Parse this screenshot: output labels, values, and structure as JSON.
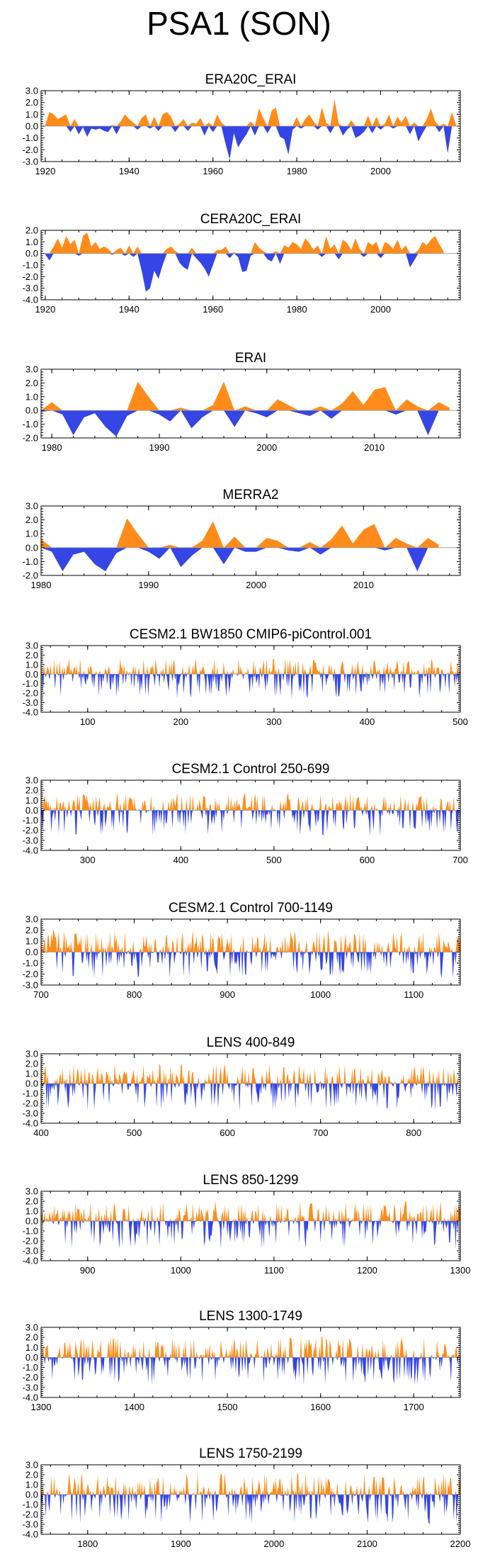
{
  "figure": {
    "title": "PSA1 (SON)"
  },
  "colors": {
    "positive": "#ff8c1a",
    "negative": "#3545e6",
    "frame": "#000000",
    "zero_line": "#9a9a9a"
  },
  "chart_data": [
    {
      "type": "area",
      "title": "ERA20C_ERAI",
      "xlim": [
        1919,
        2019
      ],
      "xticks": [
        1920,
        1940,
        1960,
        1980,
        2000
      ],
      "ylim": [
        -3.0,
        3.0
      ],
      "yticks": [
        3.0,
        2.0,
        1.0,
        0.0,
        -1.0,
        -2.0,
        -3.0
      ],
      "ytick_labels": [
        "3.0",
        "2.0",
        "1.0",
        "0.0",
        "-1.0",
        "-2.0",
        "-3.0"
      ],
      "x_start": 1920,
      "values": [
        0.1,
        1.2,
        1.0,
        0.6,
        0.8,
        1.0,
        -0.5,
        0.6,
        -0.7,
        -0.1,
        -0.9,
        -0.2,
        -0.3,
        -0.2,
        -0.4,
        -0.5,
        0.1,
        -0.7,
        0.4,
        1.0,
        0.6,
        0.3,
        -0.3,
        0.7,
        1.0,
        -0.2,
        0.8,
        -0.4,
        1.0,
        1.2,
        0.8,
        -0.5,
        0.2,
        0.6,
        -0.4,
        0.3,
        0.2,
        0.7,
        -0.8,
        0.3,
        -0.5,
        1.0,
        0.3,
        -1.5,
        -2.8,
        -0.6,
        -1.8,
        -1.2,
        -0.7,
        0.4,
        -0.8,
        1.5,
        0.7,
        -0.6,
        1.3,
        1.6,
        -0.9,
        -1.1,
        -2.4,
        -0.3,
        0.8,
        -0.2,
        0.6,
        1.0,
        0.4,
        -0.3,
        1.6,
        0.3,
        -0.6,
        2.3,
        0.2,
        -0.8,
        -0.3,
        0.5,
        -1.0,
        -0.8,
        -0.5,
        0.9,
        -0.6,
        0.8,
        -0.3,
        0.2,
        1.0,
        -0.2,
        0.8,
        0.3,
        0.9,
        -0.7,
        0.3,
        -1.3,
        -0.6,
        0.6,
        1.5,
        0.4,
        -0.5,
        0.2,
        -2.3,
        1.2,
        0.1
      ],
      "series_color_rule": "orange above zero, blue below zero"
    },
    {
      "type": "area",
      "title": "CERA20C_ERAI",
      "xlim": [
        1919,
        2019
      ],
      "xticks": [
        1920,
        1940,
        1960,
        1980,
        2000
      ],
      "ylim": [
        -4.0,
        2.0
      ],
      "yticks": [
        2.0,
        1.0,
        0.0,
        -1.0,
        -2.0,
        -3.0,
        -4.0
      ],
      "ytick_labels": [
        "2.0",
        "1.0",
        "0.0",
        "-1.0",
        "-2.0",
        "-3.0",
        "-4.0"
      ],
      "x_start": 1920,
      "values": [
        -0.1,
        -0.6,
        0.6,
        1.3,
        0.5,
        1.5,
        0.8,
        1.2,
        -0.2,
        1.5,
        1.8,
        0.6,
        1.0,
        0.4,
        0.6,
        0.4,
        -0.1,
        0.3,
        0.5,
        -0.2,
        0.7,
        -0.3,
        0.6,
        -1.5,
        -3.3,
        -3.0,
        -1.5,
        -2.2,
        -1.0,
        0.4,
        0.6,
        0.2,
        -0.8,
        -1.2,
        -1.4,
        0.5,
        -0.4,
        -0.8,
        -1.3,
        -2.0,
        -1.0,
        0.3,
        0.3,
        0.6,
        -0.4,
        0.1,
        -0.3,
        -1.6,
        -1.5,
        -0.2,
        1.0,
        0.5,
        0.2,
        -0.5,
        -0.7,
        0.2,
        -0.9,
        0.7,
        0.5,
        1.0,
        0.8,
        0.4,
        1.3,
        0.9,
        0.3,
        0.7,
        -0.3,
        1.5,
        0.4,
        0.8,
        -0.5,
        1.2,
        0.9,
        0.3,
        1.3,
        0.4,
        -0.3,
        1.0,
        0.7,
        1.0,
        -0.4,
        1.0,
        0.8,
        0.4,
        1.2,
        0.3,
        0.7,
        -1.2,
        -0.6,
        0.3,
        1.0,
        0.7,
        1.2,
        1.5,
        0.8,
        0.2
      ],
      "series_color_rule": "orange above zero, blue below zero"
    },
    {
      "type": "area",
      "title": "ERAI",
      "xlim": [
        1979,
        2018
      ],
      "xticks": [
        1980,
        1990,
        2000,
        2010
      ],
      "ylim": [
        -2.0,
        3.0
      ],
      "yticks": [
        3.0,
        2.0,
        1.0,
        0.0,
        -1.0,
        -2.0
      ],
      "ytick_labels": [
        "3.0",
        "2.0",
        "1.0",
        "0.0",
        "-1.0",
        "-2.0"
      ],
      "x_start": 1979,
      "values": [
        -0.1,
        0.6,
        -0.3,
        -1.8,
        -0.5,
        -0.2,
        -1.2,
        -1.9,
        -0.4,
        2.1,
        1.0,
        -0.3,
        -0.8,
        0.2,
        -1.3,
        -0.5,
        0.4,
        2.1,
        -1.2,
        0.3,
        -0.2,
        -0.5,
        0.8,
        0.4,
        -0.2,
        -0.4,
        0.3,
        -0.6,
        0.5,
        1.4,
        0.4,
        1.5,
        1.7,
        -0.3,
        0.8,
        0.3,
        -1.8,
        0.6,
        0.2
      ],
      "series_color_rule": "orange above zero, blue below zero"
    },
    {
      "type": "area",
      "title": "MERRA2",
      "xlim": [
        1980,
        2019
      ],
      "xticks": [
        1980,
        1990,
        2000,
        2010
      ],
      "ylim": [
        -2.0,
        3.0
      ],
      "yticks": [
        3.0,
        2.0,
        1.0,
        0.0,
        -1.0,
        -2.0
      ],
      "ytick_labels": [
        "3.0",
        "2.0",
        "1.0",
        "0.0",
        "-1.0",
        "-2.0"
      ],
      "x_start": 1980,
      "values": [
        0.6,
        -0.3,
        -1.7,
        -0.5,
        -0.3,
        -1.2,
        -1.7,
        -0.4,
        2.1,
        1.0,
        -0.3,
        -0.8,
        0.2,
        -1.4,
        -0.6,
        0.5,
        1.9,
        -1.2,
        0.8,
        -0.3,
        -0.3,
        0.7,
        0.5,
        -0.2,
        -0.3,
        0.4,
        -0.5,
        0.6,
        1.6,
        0.3,
        1.3,
        1.7,
        -0.2,
        0.7,
        0.3,
        -1.7,
        0.7,
        0.2
      ],
      "series_color_rule": "orange above zero, blue below zero"
    },
    {
      "type": "area",
      "title": "CESM2.1 BW1850 CMIP6-piControl.001",
      "xlim": [
        50,
        500
      ],
      "xticks": [
        100,
        200,
        300,
        400,
        500
      ],
      "ylim": [
        -4.0,
        3.0
      ],
      "yticks": [
        3.0,
        2.0,
        1.0,
        0.0,
        -1.0,
        -2.0,
        -3.0,
        -4.0
      ],
      "ytick_labels": [
        "3.0",
        "2.0",
        "1.0",
        "0.0",
        "-1.0",
        "-2.0",
        "-3.0",
        "-4.0"
      ],
      "x_start": 50,
      "count": 451,
      "seed": 11,
      "pos_scale": 1.7,
      "neg_scale": 2.6,
      "series_color_rule": "orange above zero, blue below zero"
    },
    {
      "type": "area",
      "title": "CESM2.1 Control 250-699",
      "xlim": [
        250,
        700
      ],
      "xticks": [
        300,
        400,
        500,
        600,
        700
      ],
      "ylim": [
        -4.0,
        3.0
      ],
      "yticks": [
        3.0,
        2.0,
        1.0,
        0.0,
        -1.0,
        -2.0,
        -3.0,
        -4.0
      ],
      "ytick_labels": [
        "3.0",
        "2.0",
        "1.0",
        "0.0",
        "-1.0",
        "-2.0",
        "-3.0",
        "-4.0"
      ],
      "x_start": 250,
      "count": 451,
      "seed": 23,
      "pos_scale": 1.8,
      "neg_scale": 2.6,
      "series_color_rule": "orange above zero, blue below zero"
    },
    {
      "type": "area",
      "title": "CESM2.1 Control 700-1149",
      "xlim": [
        700,
        1150
      ],
      "xticks": [
        700,
        800,
        900,
        1000,
        1100
      ],
      "ylim": [
        -3.0,
        3.0
      ],
      "yticks": [
        3.0,
        2.0,
        1.0,
        0.0,
        -1.0,
        -2.0,
        -3.0
      ],
      "ytick_labels": [
        "3.0",
        "2.0",
        "1.0",
        "0.0",
        "-1.0",
        "-2.0",
        "-3.0"
      ],
      "x_start": 700,
      "count": 451,
      "seed": 37,
      "pos_scale": 2.0,
      "neg_scale": 2.4,
      "series_color_rule": "orange above zero, blue below zero"
    },
    {
      "type": "area",
      "title": "LENS 400-849",
      "xlim": [
        400,
        850
      ],
      "xticks": [
        400,
        500,
        600,
        700,
        800
      ],
      "ylim": [
        -4.0,
        3.0
      ],
      "yticks": [
        3.0,
        2.0,
        1.0,
        0.0,
        -1.0,
        -2.0,
        -3.0,
        -4.0
      ],
      "ytick_labels": [
        "3.0",
        "2.0",
        "1.0",
        "0.0",
        "-1.0",
        "-2.0",
        "-3.0",
        "-4.0"
      ],
      "x_start": 400,
      "count": 451,
      "seed": 41,
      "pos_scale": 2.0,
      "neg_scale": 2.8,
      "series_color_rule": "orange above zero, blue below zero"
    },
    {
      "type": "area",
      "title": "LENS 850-1299",
      "xlim": [
        850,
        1300
      ],
      "xticks": [
        900,
        1000,
        1100,
        1200,
        1300
      ],
      "ylim": [
        -4.0,
        3.0
      ],
      "yticks": [
        3.0,
        2.0,
        1.0,
        0.0,
        -1.0,
        -2.0,
        -3.0,
        -4.0
      ],
      "ytick_labels": [
        "3.0",
        "2.0",
        "1.0",
        "0.0",
        "-1.0",
        "-2.0",
        "-3.0",
        "-4.0"
      ],
      "x_start": 850,
      "count": 451,
      "seed": 53,
      "pos_scale": 2.0,
      "neg_scale": 2.9,
      "series_color_rule": "orange above zero, blue below zero"
    },
    {
      "type": "area",
      "title": "LENS 1300-1749",
      "xlim": [
        1300,
        1750
      ],
      "xticks": [
        1300,
        1400,
        1500,
        1600,
        1700
      ],
      "ylim": [
        -4.0,
        3.0
      ],
      "yticks": [
        3.0,
        2.0,
        1.0,
        0.0,
        -1.0,
        -2.0,
        -3.0,
        -4.0
      ],
      "ytick_labels": [
        "3.0",
        "2.0",
        "1.0",
        "0.0",
        "-1.0",
        "-2.0",
        "-3.0",
        "-4.0"
      ],
      "x_start": 1300,
      "count": 451,
      "seed": 67,
      "pos_scale": 2.1,
      "neg_scale": 2.8,
      "series_color_rule": "orange above zero, blue below zero"
    },
    {
      "type": "area",
      "title": "LENS 1750-2199",
      "xlim": [
        1750,
        2200
      ],
      "xticks": [
        1800,
        1900,
        2000,
        2100,
        2200
      ],
      "ylim": [
        -4.0,
        3.0
      ],
      "yticks": [
        3.0,
        2.0,
        1.0,
        0.0,
        -1.0,
        -2.0,
        -3.0,
        -4.0
      ],
      "ytick_labels": [
        "3.0",
        "2.0",
        "1.0",
        "0.0",
        "-1.0",
        "-2.0",
        "-3.0",
        "-4.0"
      ],
      "x_start": 1750,
      "count": 451,
      "seed": 79,
      "pos_scale": 2.2,
      "neg_scale": 3.0,
      "series_color_rule": "orange above zero, blue below zero"
    }
  ]
}
